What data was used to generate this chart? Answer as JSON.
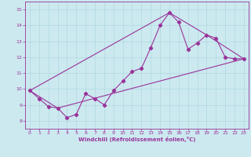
{
  "xlabel": "Windchill (Refroidissement éolien,°C)",
  "xlim": [
    -0.5,
    23.5
  ],
  "ylim": [
    7.5,
    15.5
  ],
  "yticks": [
    8,
    9,
    10,
    11,
    12,
    13,
    14,
    15
  ],
  "xticks": [
    0,
    1,
    2,
    3,
    4,
    5,
    6,
    7,
    8,
    9,
    10,
    11,
    12,
    13,
    14,
    15,
    16,
    17,
    18,
    19,
    20,
    21,
    22,
    23
  ],
  "bg_color": "#cce9f0",
  "line_color": "#993399",
  "grid_color": "#b0d8e0",
  "line1_x": [
    0,
    1,
    2,
    3,
    4,
    5,
    6,
    7,
    8,
    9,
    10,
    11,
    12,
    13,
    14,
    15,
    16,
    17,
    18,
    19,
    20,
    21,
    22,
    23
  ],
  "line1_y": [
    9.9,
    9.4,
    8.9,
    8.8,
    8.2,
    8.4,
    9.7,
    9.4,
    9.0,
    9.9,
    10.5,
    11.1,
    11.3,
    12.6,
    14.0,
    14.8,
    14.2,
    12.5,
    12.9,
    13.4,
    13.2,
    12.0,
    11.9,
    11.9
  ],
  "line2_x": [
    0,
    3,
    23
  ],
  "line2_y": [
    9.9,
    8.8,
    11.9
  ],
  "line3_x": [
    0,
    15,
    19,
    23
  ],
  "line3_y": [
    9.9,
    14.8,
    13.4,
    11.9
  ],
  "marker": "D",
  "markersize": 2.2,
  "linewidth": 0.8
}
